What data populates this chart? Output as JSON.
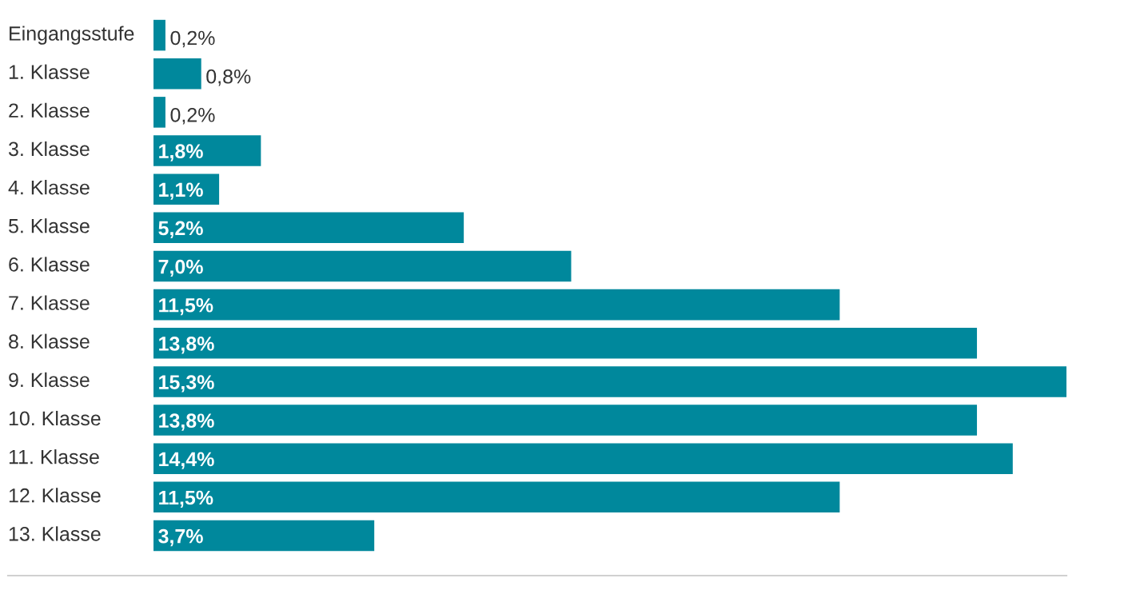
{
  "chart_data": {
    "type": "bar",
    "orientation": "horizontal",
    "color": "#00889c",
    "categories": [
      "Eingangsstufe",
      "1. Klasse",
      "2. Klasse",
      "3. Klasse",
      "4. Klasse",
      "5. Klasse",
      "6. Klasse",
      "7. Klasse",
      "8. Klasse",
      "9. Klasse",
      "10. Klasse",
      "11. Klasse",
      "12. Klasse",
      "13. Klasse"
    ],
    "values": [
      0.2,
      0.8,
      0.2,
      1.8,
      1.1,
      5.2,
      7.0,
      11.5,
      13.8,
      15.3,
      13.8,
      14.4,
      11.5,
      3.7
    ],
    "value_labels": [
      "0,2%",
      "0,8%",
      "0,2%",
      "1,8%",
      "1,1%",
      "5,2%",
      "7,0%",
      "11,5%",
      "13,8%",
      "15,3%",
      "13,8%",
      "14,4%",
      "11,5%",
      "3,7%"
    ],
    "legend": false
  }
}
